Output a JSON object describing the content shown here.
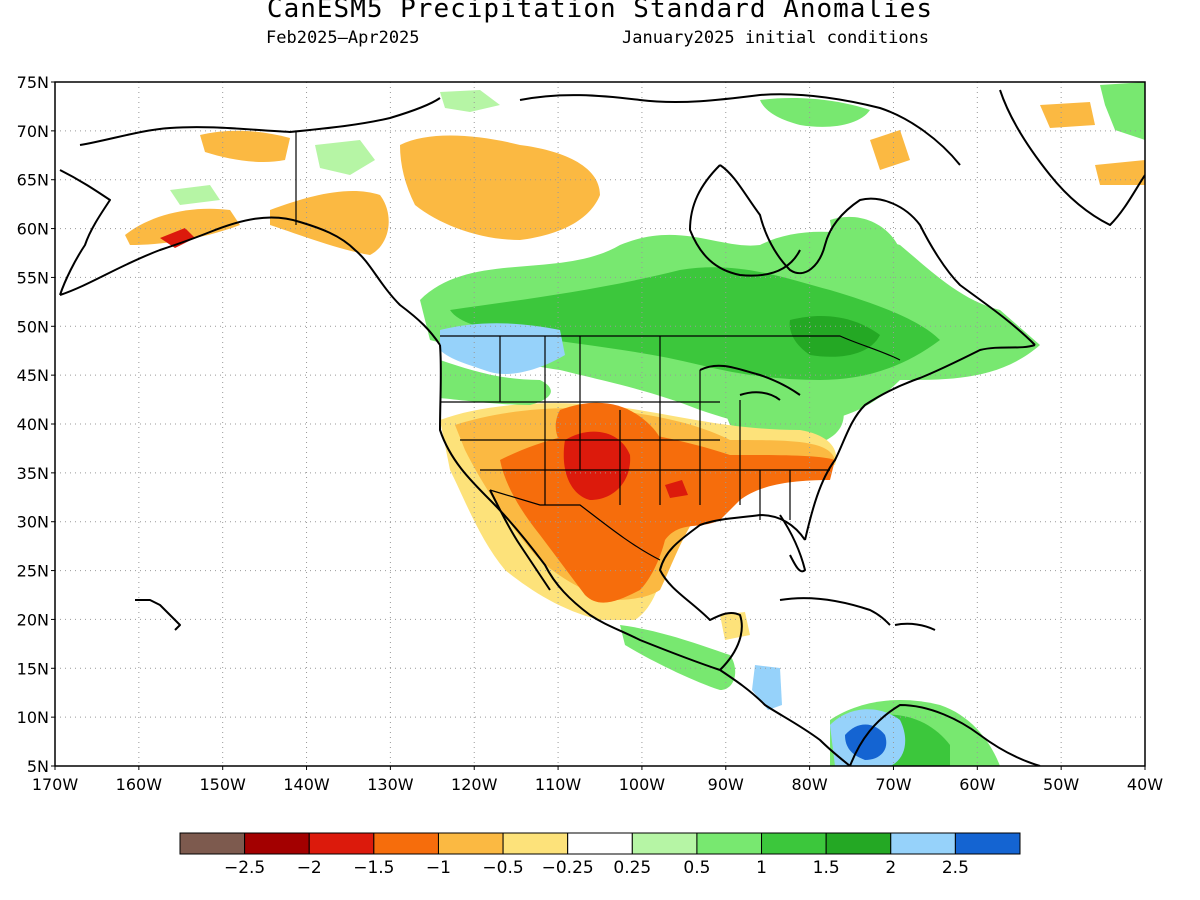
{
  "header": {
    "title": "CanESM5 Precipitation Standard Anomalies",
    "period": "Feb2025–Apr2025",
    "initial_conditions": "January2025 initial conditions"
  },
  "map": {
    "lat_labels": [
      "75N",
      "70N",
      "65N",
      "60N",
      "55N",
      "50N",
      "45N",
      "40N",
      "35N",
      "30N",
      "25N",
      "20N",
      "15N",
      "10N",
      "5N"
    ],
    "lon_labels": [
      "170W",
      "160W",
      "150W",
      "140W",
      "130W",
      "120W",
      "110W",
      "100W",
      "90W",
      "80W",
      "70W",
      "60W",
      "50W",
      "40W"
    ],
    "lat_range": [
      5,
      75
    ],
    "lon_range": [
      -170,
      -40
    ]
  },
  "colorbar": {
    "colors": [
      "#7d5a4e",
      "#a30000",
      "#dc1a0c",
      "#f66d0c",
      "#fbb942",
      "#fde27a",
      "#ffffff",
      "#b6f5a5",
      "#78e870",
      "#3cc73c",
      "#24a824",
      "#96d2fa",
      "#1464d2"
    ],
    "labels": [
      "−2.5",
      "−2",
      "−1.5",
      "−1",
      "−0.5",
      "−0.25",
      "0.25",
      "0.5",
      "1",
      "1.5",
      "2",
      "2.5"
    ]
  },
  "palette": {
    "dry_strong": "#dc1a0c",
    "dry": "#f66d0c",
    "dry_mod": "#fbb942",
    "dry_weak": "#fde27a",
    "wet_weak": "#b6f5a5",
    "wet": "#78e870",
    "wet_mod": "#3cc73c",
    "wet_strong": "#24a824",
    "very_wet": "#96d2fa",
    "extreme_wet": "#1464d2"
  }
}
